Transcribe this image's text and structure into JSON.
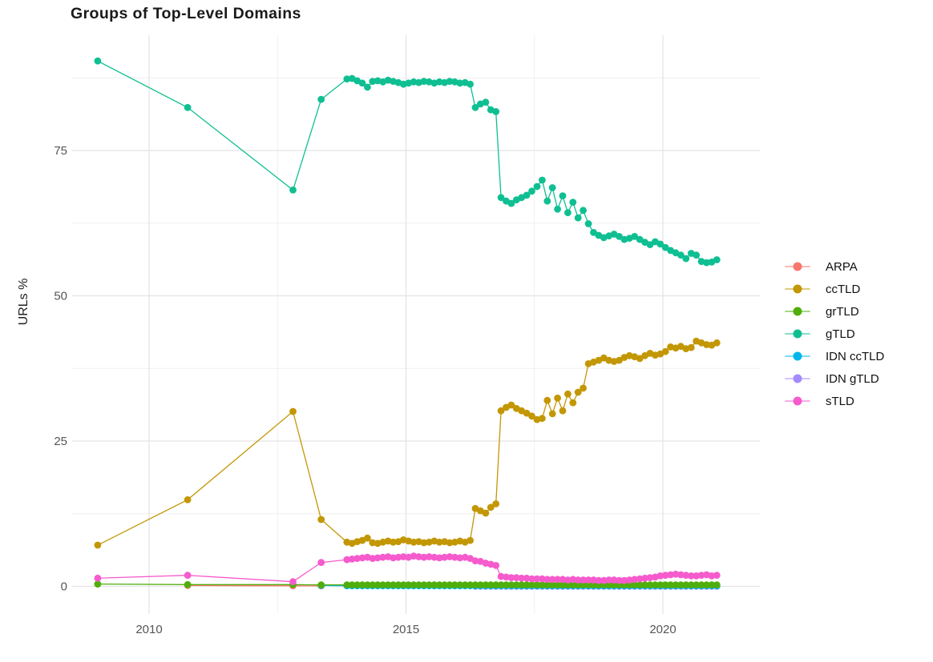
{
  "chart_data": {
    "type": "line",
    "title": "Groups of Top-Level Domains",
    "xlabel": "",
    "ylabel": "URLs %",
    "grid": true,
    "legend_position": "right",
    "x_axis": {
      "range": [
        2008.45,
        2021.65
      ],
      "major_ticks": [
        2010,
        2015,
        2020
      ],
      "tick_labels": [
        "2010",
        "2015",
        "2020"
      ],
      "minor_ticks": [
        2012.5,
        2017.5
      ]
    },
    "y_axis": {
      "range": [
        -4.7,
        95.2
      ],
      "major_ticks": [
        0,
        25,
        50,
        75
      ],
      "tick_labels": [
        "0",
        "25",
        "50",
        "75"
      ],
      "minor_ticks": [
        12.5,
        37.5,
        62.5,
        87.5
      ]
    },
    "legend": [
      {
        "label": "ARPA",
        "color": "#F8766D"
      },
      {
        "label": "ccTLD",
        "color": "#C39704"
      },
      {
        "label": "grTLD",
        "color": "#4FAE0C"
      },
      {
        "label": "gTLD",
        "color": "#0FBF92"
      },
      {
        "label": "IDN ccTLD",
        "color": "#00B6EB"
      },
      {
        "label": "IDN gTLD",
        "color": "#A58AFF"
      },
      {
        "label": "sTLD",
        "color": "#F65BCD"
      }
    ],
    "draw_order": [
      "ARPA",
      "IDN gTLD",
      "IDN ccTLD",
      "grTLD",
      "sTLD",
      "ccTLD",
      "gTLD"
    ],
    "series": [
      {
        "name": "ARPA",
        "color": "#F8766D",
        "points": [
          [
            2010.75,
            0.15
          ],
          [
            2012.8,
            0.1
          ],
          [
            2013.35,
            0.08
          ]
        ]
      },
      {
        "name": "IDN gTLD",
        "color": "#A58AFF",
        "dense": {
          "start": 2016.35,
          "step": 0.1,
          "values": [
            0.02,
            0.02,
            0.02,
            0.02,
            0.02,
            0.02,
            0.02,
            0.02,
            0.02,
            0.02,
            0.02,
            0.02,
            0.02,
            0.02,
            0.02,
            0.02,
            0.02,
            0.02,
            0.02,
            0.02,
            0.02,
            0.02,
            0.02,
            0.02,
            0.02,
            0.02,
            0.02,
            0.02,
            0.02,
            0.02,
            0.02,
            0.02,
            0.02,
            0.02,
            0.02,
            0.02,
            0.02,
            0.02,
            0.02,
            0.02,
            0.02,
            0.02,
            0.02,
            0.02,
            0.02,
            0.02,
            0.02,
            0.02
          ]
        }
      },
      {
        "name": "IDN ccTLD",
        "color": "#00B6EB",
        "points": [
          [
            2013.35,
            0.15
          ]
        ],
        "dense": {
          "start": 2013.85,
          "step": 0.1,
          "values": [
            0.1,
            0.1,
            0.1,
            0.1,
            0.1,
            0.1,
            0.1,
            0.1,
            0.1,
            0.1,
            0.1,
            0.1,
            0.1,
            0.1,
            0.1,
            0.1,
            0.1,
            0.1,
            0.1,
            0.1,
            0.1,
            0.1,
            0.1,
            0.1,
            0.1,
            0.1,
            0.1,
            0.1,
            0.1,
            0.1,
            0.1,
            0.1,
            0.1,
            0.1,
            0.1,
            0.1,
            0.1,
            0.1,
            0.1,
            0.1,
            0.1,
            0.1,
            0.1,
            0.1,
            0.1,
            0.1,
            0.1,
            0.1,
            0.1,
            0.1,
            0.1,
            0.1,
            0.1,
            0.1,
            0.1,
            0.1,
            0.1,
            0.1,
            0.1,
            0.1,
            0.1,
            0.1,
            0.1,
            0.1,
            0.1,
            0.1,
            0.1,
            0.1,
            0.1,
            0.1,
            0.1,
            0.1,
            0.1
          ]
        }
      },
      {
        "name": "grTLD",
        "color": "#4FAE0C",
        "points": [
          [
            2009.0,
            0.4
          ],
          [
            2010.75,
            0.3
          ],
          [
            2012.8,
            0.3
          ],
          [
            2013.35,
            0.25
          ]
        ],
        "dense": {
          "start": 2013.85,
          "step": 0.1,
          "values": [
            0.25,
            0.25,
            0.25,
            0.25,
            0.25,
            0.25,
            0.25,
            0.25,
            0.25,
            0.25,
            0.25,
            0.25,
            0.25,
            0.25,
            0.25,
            0.25,
            0.25,
            0.25,
            0.25,
            0.25,
            0.25,
            0.25,
            0.25,
            0.25,
            0.25,
            0.25,
            0.25,
            0.25,
            0.25,
            0.25,
            0.25,
            0.25,
            0.25,
            0.25,
            0.25,
            0.25,
            0.25,
            0.25,
            0.25,
            0.25,
            0.25,
            0.25,
            0.25,
            0.25,
            0.25,
            0.25,
            0.25,
            0.25,
            0.25,
            0.25,
            0.25,
            0.25,
            0.25,
            0.25,
            0.25,
            0.25,
            0.25,
            0.25,
            0.25,
            0.25,
            0.25,
            0.25,
            0.25,
            0.25,
            0.25,
            0.25,
            0.25,
            0.25,
            0.25,
            0.25,
            0.25,
            0.25,
            0.25
          ]
        }
      },
      {
        "name": "sTLD",
        "color": "#F65BCD",
        "points": [
          [
            2009.0,
            1.4
          ],
          [
            2010.75,
            1.9
          ],
          [
            2012.8,
            0.8
          ],
          [
            2013.35,
            4.1
          ]
        ],
        "dense": {
          "start": 2013.85,
          "step": 0.1,
          "values": [
            4.6,
            4.7,
            4.8,
            4.9,
            5.0,
            4.8,
            4.9,
            5.0,
            5.1,
            4.9,
            5.0,
            5.1,
            5.0,
            5.2,
            5.1,
            5.0,
            5.1,
            5.0,
            4.9,
            5.0,
            5.1,
            5.0,
            4.9,
            5.0,
            4.8,
            4.4,
            4.3,
            4.0,
            3.8,
            3.6,
            1.7,
            1.6,
            1.5,
            1.5,
            1.4,
            1.4,
            1.3,
            1.3,
            1.3,
            1.2,
            1.2,
            1.2,
            1.2,
            1.1,
            1.2,
            1.1,
            1.1,
            1.1,
            1.1,
            1.0,
            1.0,
            1.1,
            1.1,
            1.0,
            1.0,
            1.1,
            1.2,
            1.3,
            1.4,
            1.5,
            1.6,
            1.8,
            1.9,
            2.0,
            2.1,
            2.0,
            1.9,
            1.8,
            1.8,
            1.9,
            2.0,
            1.8,
            1.9
          ]
        }
      },
      {
        "name": "ccTLD",
        "color": "#C39704",
        "points": [
          [
            2009.0,
            7.1
          ],
          [
            2010.75,
            14.9
          ],
          [
            2012.8,
            30.1
          ],
          [
            2013.35,
            11.5
          ]
        ],
        "dense": {
          "start": 2013.85,
          "step": 0.1,
          "values": [
            7.6,
            7.4,
            7.7,
            7.9,
            8.3,
            7.5,
            7.4,
            7.6,
            7.8,
            7.6,
            7.7,
            8.0,
            7.8,
            7.6,
            7.7,
            7.5,
            7.6,
            7.8,
            7.6,
            7.7,
            7.5,
            7.6,
            7.8,
            7.6,
            7.9,
            13.4,
            13.0,
            12.6,
            13.6,
            14.2,
            30.2,
            30.8,
            31.2,
            30.6,
            30.2,
            29.8,
            29.3,
            28.7,
            28.9,
            32.0,
            29.7,
            32.4,
            30.2,
            33.1,
            31.6,
            33.4,
            34.1,
            38.3,
            38.6,
            38.9,
            39.3,
            38.9,
            38.7,
            38.9,
            39.4,
            39.7,
            39.5,
            39.2,
            39.7,
            40.1,
            39.8,
            40.0,
            40.4,
            41.2,
            41.0,
            41.3,
            40.9,
            41.1,
            42.2,
            41.9,
            41.6,
            41.5,
            41.9
          ]
        }
      },
      {
        "name": "gTLD",
        "color": "#0FBF92",
        "points": [
          [
            2009.0,
            90.4
          ],
          [
            2010.75,
            82.4
          ],
          [
            2012.8,
            68.2
          ],
          [
            2013.35,
            83.8
          ]
        ],
        "dense": {
          "start": 2013.85,
          "step": 0.1,
          "values": [
            87.3,
            87.4,
            87.0,
            86.6,
            85.9,
            86.9,
            87.0,
            86.8,
            87.1,
            86.9,
            86.7,
            86.4,
            86.6,
            86.8,
            86.7,
            86.9,
            86.8,
            86.6,
            86.8,
            86.7,
            86.9,
            86.8,
            86.6,
            86.7,
            86.4,
            82.4,
            83.0,
            83.3,
            82.0,
            81.7,
            66.9,
            66.3,
            65.9,
            66.5,
            66.9,
            67.3,
            68.0,
            68.8,
            69.9,
            66.3,
            68.6,
            64.9,
            67.2,
            64.3,
            66.1,
            63.4,
            64.7,
            62.4,
            60.9,
            60.4,
            60.0,
            60.3,
            60.6,
            60.2,
            59.7,
            59.9,
            60.2,
            59.7,
            59.2,
            58.8,
            59.3,
            58.9,
            58.3,
            57.8,
            57.4,
            57.0,
            56.4,
            57.3,
            57.0,
            55.9,
            55.7,
            55.8,
            56.2
          ]
        }
      }
    ]
  },
  "colors": {
    "background": "#ffffff",
    "grid_major": "#E4E4E4",
    "grid_minor": "#EFEFEF",
    "axis_text": "#555555",
    "title_text": "#1a1a1a"
  }
}
